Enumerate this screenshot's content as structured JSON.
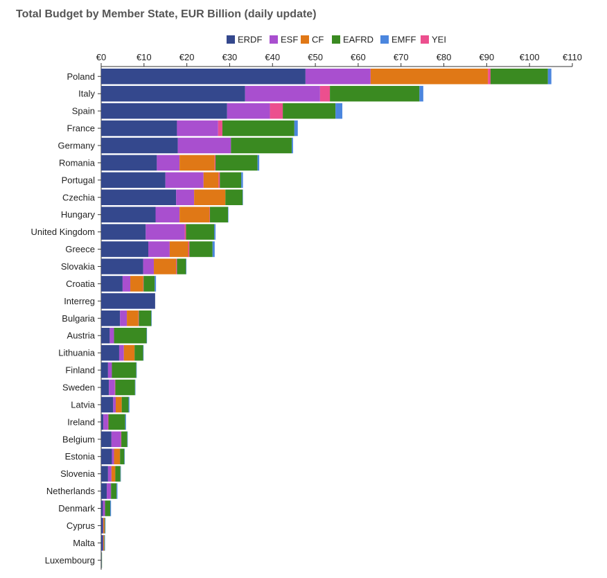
{
  "chart_data": {
    "type": "bar",
    "orientation": "horizontal",
    "stacked": true,
    "title": "Total Budget by Member State, EUR Billion (daily update)",
    "xlim": [
      0,
      110
    ],
    "x_ticks": [
      0,
      10,
      20,
      30,
      40,
      50,
      60,
      70,
      80,
      90,
      100,
      110
    ],
    "x_tick_prefix": "€",
    "legend_position": "top",
    "grid": false,
    "categories": [
      "Poland",
      "Italy",
      "Spain",
      "France",
      "Germany",
      "Romania",
      "Portugal",
      "Czechia",
      "Hungary",
      "United Kingdom",
      "Greece",
      "Slovakia",
      "Croatia",
      "Interreg",
      "Bulgaria",
      "Austria",
      "Lithuania",
      "Finland",
      "Sweden",
      "Latvia",
      "Ireland",
      "Belgium",
      "Estonia",
      "Slovenia",
      "Netherlands",
      "Denmark",
      "Cyprus",
      "Malta",
      "Luxembourg"
    ],
    "series": [
      {
        "name": "ERDF",
        "color": "#34488d",
        "values": [
          47.7,
          33.6,
          29.4,
          17.7,
          17.9,
          13.0,
          15.0,
          17.5,
          12.7,
          10.4,
          11.0,
          9.8,
          5.0,
          12.6,
          4.4,
          2.0,
          4.2,
          1.6,
          1.8,
          2.8,
          0.5,
          2.4,
          2.5,
          1.6,
          1.3,
          0.4,
          0.4,
          0.4,
          0.05
        ]
      },
      {
        "name": "ESF",
        "color": "#a94fcf",
        "values": [
          15.2,
          17.5,
          10.0,
          9.6,
          12.4,
          5.3,
          8.9,
          4.2,
          5.6,
          9.1,
          5.0,
          2.5,
          1.8,
          0,
          1.6,
          1.0,
          1.1,
          0.9,
          1.4,
          0.6,
          1.1,
          2.2,
          0.5,
          0.8,
          1.0,
          0.5,
          0.1,
          0.1,
          0.04
        ]
      },
      {
        "name": "CF",
        "color": "#e07816",
        "values": [
          27.4,
          0,
          0,
          0,
          0,
          8.2,
          3.5,
          7.3,
          7.0,
          0,
          4.3,
          5.2,
          3.0,
          0,
          2.7,
          0,
          2.5,
          0,
          0,
          1.4,
          0,
          0,
          1.4,
          0.9,
          0,
          0,
          0.3,
          0.2,
          0
        ]
      },
      {
        "name": "YEI",
        "color": "#ec4f8e",
        "values": [
          0.6,
          2.3,
          3.0,
          1.0,
          0,
          0.2,
          0.3,
          0,
          0.1,
          0.3,
          0.3,
          0.2,
          0.1,
          0,
          0.1,
          0,
          0,
          0,
          0.1,
          0,
          0.1,
          0.1,
          0,
          0,
          0,
          0,
          0,
          0,
          0
        ]
      },
      {
        "name": "EAFRD",
        "color": "#3a8a21",
        "values": [
          13.4,
          20.9,
          12.3,
          16.8,
          14.2,
          9.8,
          5.0,
          4.0,
          4.2,
          6.6,
          5.4,
          2.1,
          2.6,
          0,
          2.9,
          7.6,
          2.0,
          5.7,
          4.6,
          1.6,
          3.9,
          1.4,
          1.0,
          1.2,
          1.3,
          1.2,
          0.1,
          0.1,
          0.1
        ]
      },
      {
        "name": "EMFF",
        "color": "#4b86de",
        "values": [
          0.8,
          0.9,
          1.6,
          0.8,
          0.3,
          0.4,
          0.4,
          0.1,
          0.1,
          0.3,
          0.5,
          0.1,
          0.3,
          0,
          0.1,
          0.1,
          0.1,
          0.1,
          0.1,
          0.2,
          0.2,
          0.1,
          0.1,
          0.05,
          0.2,
          0.2,
          0.05,
          0.03,
          0
        ]
      }
    ],
    "legend": [
      {
        "name": "ERDF",
        "color": "#34488d"
      },
      {
        "name": "ESF",
        "color": "#a94fcf"
      },
      {
        "name": "CF",
        "color": "#e07816"
      },
      {
        "name": "EAFRD",
        "color": "#3a8a21"
      },
      {
        "name": "EMFF",
        "color": "#4b86de"
      },
      {
        "name": "YEI",
        "color": "#ec4f8e"
      }
    ]
  }
}
